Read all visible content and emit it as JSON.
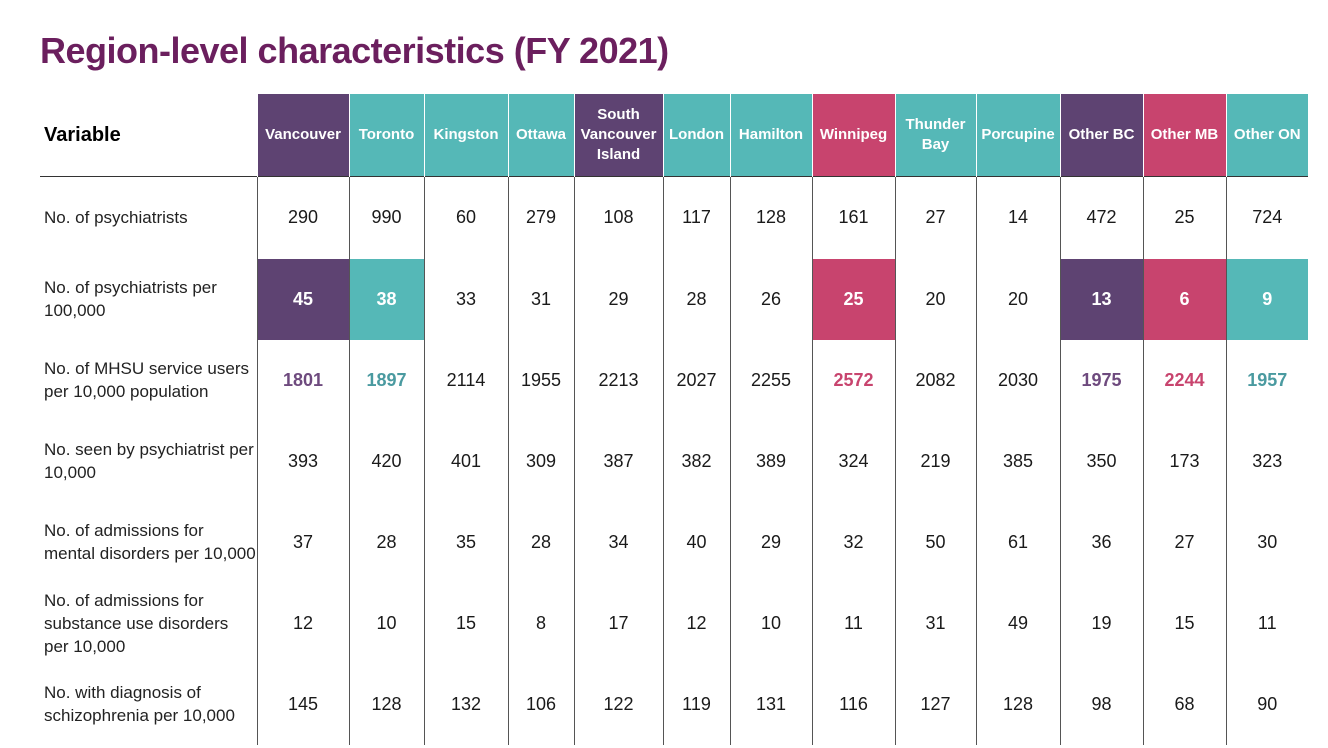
{
  "title": "Region-level characteristics (FY 2021)",
  "colors": {
    "purple": "#5e4372",
    "teal": "#55b8b7",
    "pink": "#c8446e",
    "title": "#6b1f5e",
    "text_purple": "#6e4a7e",
    "text_teal": "#4a9aa0",
    "text_pink": "#c8446e"
  },
  "header": {
    "variable_label": "Variable",
    "regions": [
      {
        "label": "Vancouver",
        "color": "purple"
      },
      {
        "label": "Toronto",
        "color": "teal"
      },
      {
        "label": "Kingston",
        "color": "teal"
      },
      {
        "label": "Ottawa",
        "color": "teal"
      },
      {
        "label": "South Vancouver Island",
        "color": "purple"
      },
      {
        "label": "London",
        "color": "teal"
      },
      {
        "label": "Hamilton",
        "color": "teal"
      },
      {
        "label": "Winnipeg",
        "color": "pink"
      },
      {
        "label": "Thunder Bay",
        "color": "teal"
      },
      {
        "label": "Porcupine",
        "color": "teal"
      },
      {
        "label": "Other BC",
        "color": "purple"
      },
      {
        "label": "Other MB",
        "color": "pink"
      },
      {
        "label": "Other ON",
        "color": "teal"
      }
    ]
  },
  "rows": [
    {
      "variable": "No. of psychiatrists",
      "values": [
        "290",
        "990",
        "60",
        "279",
        "108",
        "117",
        "128",
        "161",
        "27",
        "14",
        "472",
        "25",
        "724"
      ]
    },
    {
      "variable": "No. of psychiatrists per 100,000",
      "values": [
        "45",
        "38",
        "33",
        "31",
        "29",
        "28",
        "26",
        "25",
        "20",
        "20",
        "13",
        "6",
        "9"
      ],
      "fill_highlight": [
        0,
        1,
        7,
        10,
        11,
        12
      ]
    },
    {
      "variable": "No. of MHSU service users per 10,000 population",
      "values": [
        "1801",
        "1897",
        "2114",
        "1955",
        "2213",
        "2027",
        "2255",
        "2572",
        "2082",
        "2030",
        "1975",
        "2244",
        "1957"
      ],
      "text_highlight": [
        0,
        1,
        7,
        10,
        11,
        12
      ]
    },
    {
      "variable": "No. seen by psychiatrist per 10,000",
      "values": [
        "393",
        "420",
        "401",
        "309",
        "387",
        "382",
        "389",
        "324",
        "219",
        "385",
        "350",
        "173",
        "323"
      ]
    },
    {
      "variable": "No. of admissions for mental disorders per 10,000",
      "values": [
        "37",
        "28",
        "35",
        "28",
        "34",
        "40",
        "29",
        "32",
        "50",
        "61",
        "36",
        "27",
        "30"
      ]
    },
    {
      "variable": "No. of admissions for substance use disorders per 10,000",
      "values": [
        "12",
        "10",
        "15",
        "8",
        "17",
        "12",
        "10",
        "11",
        "31",
        "49",
        "19",
        "15",
        "11"
      ]
    },
    {
      "variable": "No. with diagnosis of schizophrenia per 10,000",
      "values": [
        "145",
        "128",
        "132",
        "106",
        "122",
        "119",
        "131",
        "116",
        "127",
        "128",
        "98",
        "68",
        "90"
      ]
    }
  ]
}
